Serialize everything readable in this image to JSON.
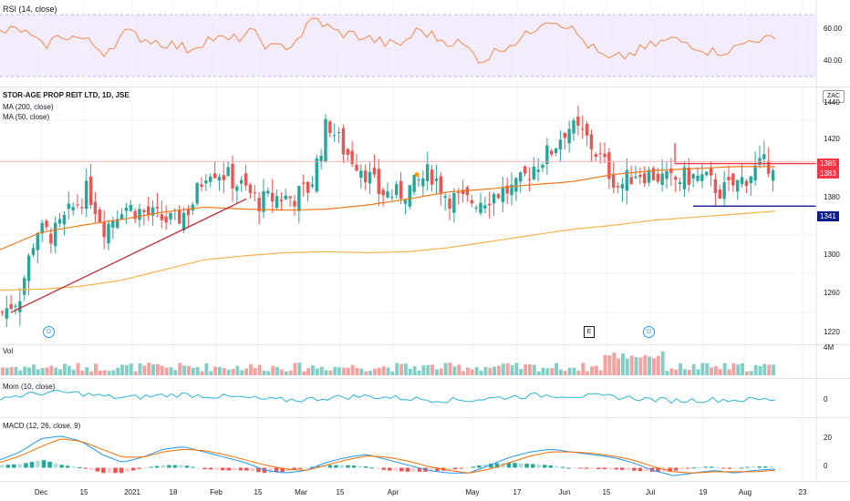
{
  "colors": {
    "up": "#26a69a",
    "down": "#ef5350",
    "ma200": "#f7b24a",
    "ma50": "#ef7a1a",
    "trendline": "#c2282f",
    "rsi_line": "#f48a4a",
    "rsi_band": "#e9defc",
    "mom_line": "#29b6d6",
    "macd_line": "#2196f3",
    "signal_line": "#ff6d00",
    "resistance": "#f23645",
    "support": "#0d1d8a"
  },
  "panes": {
    "rsi": {
      "title": "RSI (14, close)",
      "ticks": [
        "60.00",
        "40.00"
      ]
    },
    "price": {
      "title": "STOR-AGE PROP REIT LTD, 1D, JSE",
      "ma200_label": "MA (200, close)",
      "ma50_label": "MA (50, close)",
      "unit": "ZAC",
      "ticks": [
        "1440",
        "1420",
        "1380",
        "1340",
        "1300",
        "1260",
        "1220"
      ],
      "tag_close": "1385",
      "tag_resistance": "1383",
      "tag_support": "1341"
    },
    "volume": {
      "title": "Vol",
      "tick": "4M"
    },
    "momentum": {
      "title": "Mom (10, close)",
      "tick": "0"
    },
    "macd": {
      "title": "MACD (12, 26, close, 9)",
      "ticks": [
        "20",
        "0"
      ]
    }
  },
  "markers": [
    {
      "text": "D",
      "kind": "dividend"
    },
    {
      "text": "E",
      "kind": "earnings"
    },
    {
      "text": "D",
      "kind": "dividend"
    }
  ],
  "x_axis": [
    "Dec",
    "15",
    "2021",
    "18",
    "Feb",
    "15",
    "Mar",
    "15",
    "Apr",
    "May",
    "17",
    "Jun",
    "15",
    "Jul",
    "19",
    "Aug",
    "23"
  ],
  "chart_data": {
    "type": "candlestick",
    "title": "STOR-AGE PROP REIT LTD, 1D, JSE",
    "y_unit": "ZAC",
    "price_range": [
      1210,
      1450
    ],
    "price_key_points": [
      1236,
      1252,
      1318,
      1312,
      1336,
      1357,
      1319,
      1342,
      1336,
      1330,
      1325,
      1340,
      1380,
      1372,
      1360,
      1345,
      1350,
      1349,
      1360,
      1425,
      1395,
      1380,
      1355,
      1352,
      1360,
      1375,
      1350,
      1345,
      1348,
      1355,
      1358,
      1380,
      1395,
      1420,
      1410,
      1386,
      1360,
      1375,
      1372,
      1365,
      1370,
      1368,
      1355,
      1364,
      1378,
      1385
    ],
    "support_level": 1341,
    "resistance_level": 1383,
    "last_close": 1385,
    "ma200_points": [
      1258,
      1259,
      1262,
      1268,
      1278,
      1288,
      1292,
      1295,
      1296,
      1295,
      1296,
      1300,
      1306,
      1312,
      1318,
      1322,
      1327,
      1330,
      1333,
      1336
    ],
    "ma50_points": [
      1298,
      1315,
      1322,
      1328,
      1335,
      1340,
      1338,
      1337,
      1338,
      1342,
      1348,
      1355,
      1358,
      1362,
      1365,
      1372,
      1376,
      1378,
      1380,
      1380
    ],
    "rsi_range": [
      25,
      75
    ],
    "rsi_key_points": [
      60,
      62,
      50,
      58,
      55,
      46,
      60,
      55,
      52,
      48,
      56,
      54,
      60,
      48,
      52,
      70,
      60,
      58,
      54,
      50,
      62,
      55,
      52,
      40,
      50,
      56,
      70,
      66,
      52,
      40,
      44,
      50,
      55,
      52,
      46,
      48,
      56,
      54
    ],
    "macd_range": [
      -10,
      30
    ],
    "macd_key_points": [
      6,
      12,
      22,
      24,
      20,
      10,
      4,
      8,
      14,
      16,
      12,
      8,
      4,
      -2,
      -4,
      -2,
      4,
      8,
      10,
      6,
      2,
      -2,
      -4,
      -4,
      2,
      8,
      12,
      14,
      12,
      10,
      8,
      4,
      -2,
      -6,
      -4,
      -2,
      -4,
      -2,
      -1
    ],
    "signal_key_points": [
      4,
      9,
      16,
      22,
      20,
      14,
      8,
      8,
      12,
      14,
      13,
      10,
      6,
      2,
      -1,
      -2,
      2,
      6,
      9,
      8,
      5,
      1,
      -2,
      -4,
      -1,
      4,
      9,
      12,
      12,
      11,
      9,
      6,
      1,
      -3,
      -4,
      -3,
      -3,
      -3,
      -2
    ],
    "series": [
      {
        "name": "MA (200, close)"
      },
      {
        "name": "MA (50, close)"
      }
    ]
  }
}
